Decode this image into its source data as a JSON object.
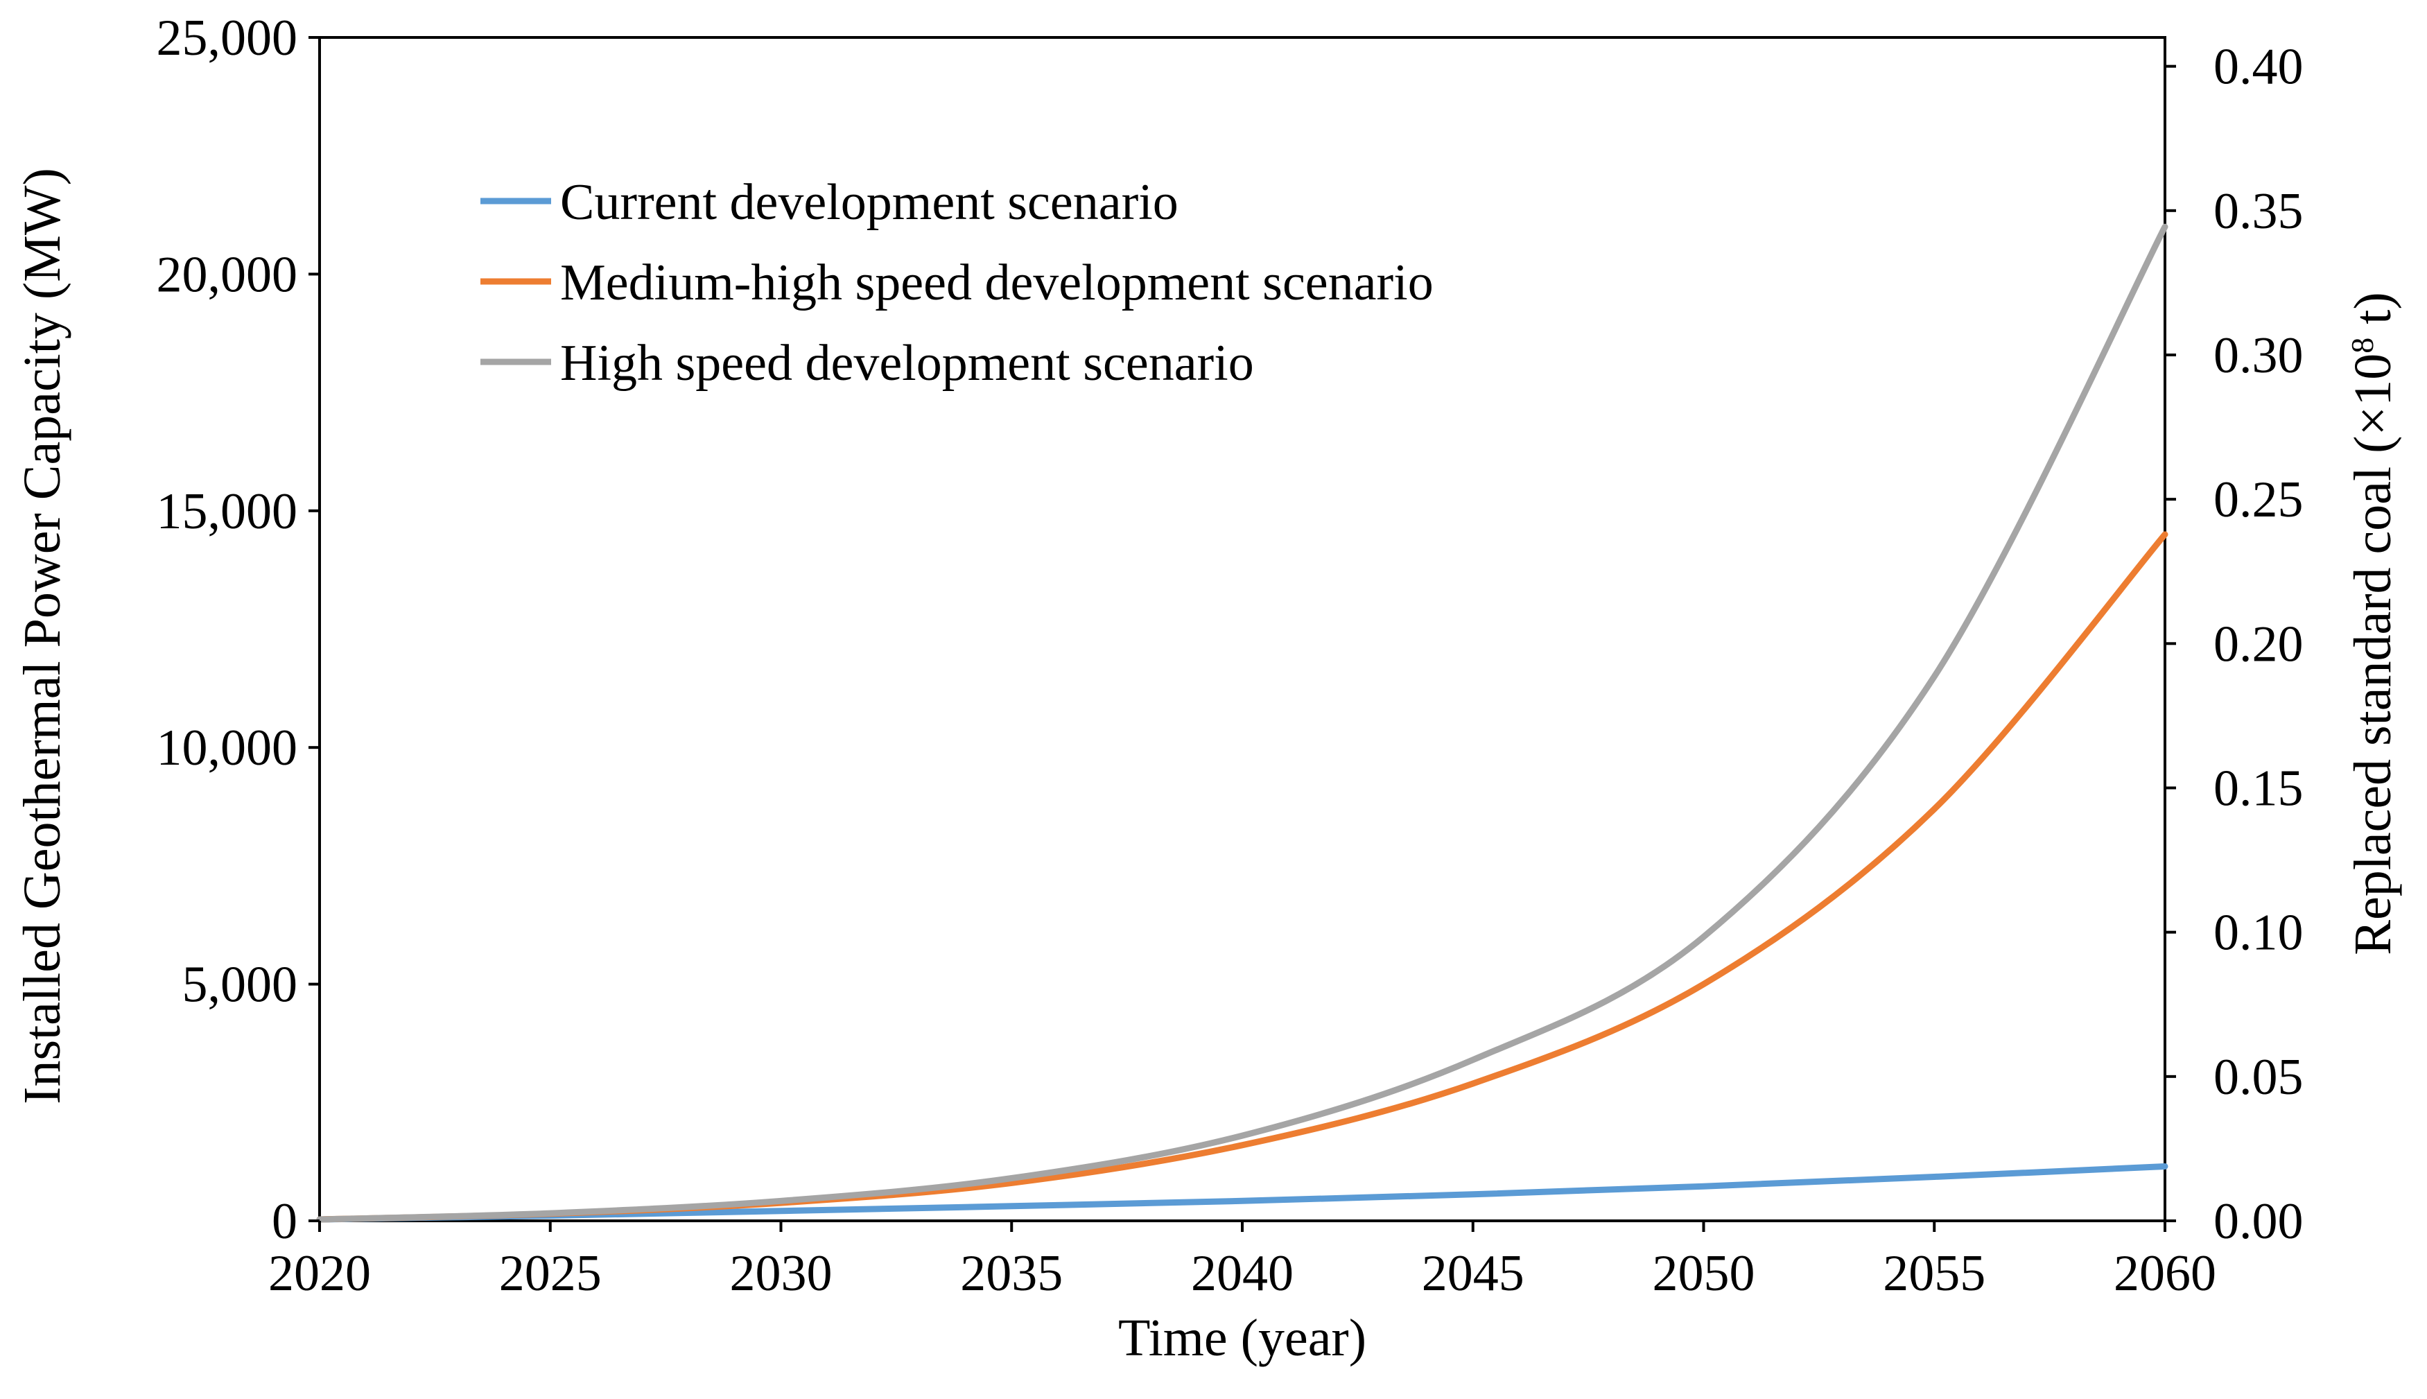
{
  "chart_data": {
    "type": "line",
    "title": "",
    "xlabel": "Time (year)",
    "ylabel": "Installed Geothermal Power Capacity (MW)",
    "y2label_prefix": "Replaced standard coal (×10",
    "y2label_exp": "8",
    "y2label_suffix": " t)",
    "xlim": [
      2020,
      2060
    ],
    "ylim": [
      0,
      25000
    ],
    "y2lim": [
      0,
      0.41
    ],
    "xticks": [
      2020,
      2025,
      2030,
      2035,
      2040,
      2045,
      2050,
      2055,
      2060
    ],
    "xtick_labels": [
      "2020",
      "2025",
      "2030",
      "2035",
      "2040",
      "2045",
      "2050",
      "2055",
      "2060"
    ],
    "yticks": [
      0,
      5000,
      10000,
      15000,
      20000,
      25000
    ],
    "ytick_labels": [
      "0",
      "5,000",
      "10,000",
      "15,000",
      "20,000",
      "25,000"
    ],
    "y2ticks": [
      0,
      0.05,
      0.1,
      0.15,
      0.2,
      0.25,
      0.3,
      0.35,
      0.4
    ],
    "y2tick_labels": [
      "0.00",
      "0.05",
      "0.10",
      "0.15",
      "0.20",
      "0.25",
      "0.30",
      "0.35",
      "0.40"
    ],
    "legend_position": "top-left",
    "grid": false,
    "x": [
      2020,
      2025,
      2030,
      2035,
      2040,
      2045,
      2050,
      2055,
      2060
    ],
    "series": [
      {
        "name": "Current development scenario",
        "color": "#5B9BD5",
        "values": [
          30,
          110,
          210,
          310,
          420,
          560,
          730,
          930,
          1150
        ]
      },
      {
        "name": "Medium-high speed development scenario",
        "color": "#ED7D31",
        "values": [
          30,
          150,
          380,
          800,
          1600,
          2900,
          5000,
          8700,
          14500
        ]
      },
      {
        "name": "High speed development scenario",
        "color": "#A5A5A5",
        "values": [
          30,
          160,
          420,
          900,
          1800,
          3400,
          6000,
          11500,
          21000
        ]
      }
    ]
  }
}
